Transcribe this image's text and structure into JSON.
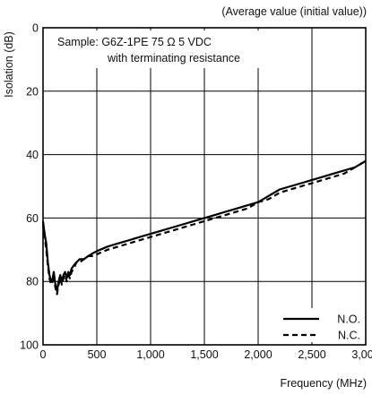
{
  "chart_data": {
    "type": "line",
    "title": "",
    "note": "(Average value (initial value))",
    "annotation": {
      "line1": "Sample: G6Z-1PE  75 Ω  5 VDC",
      "line2": "with terminating resistance"
    },
    "xlabel": "Frequency (MHz)",
    "ylabel": "Isolation (dB)",
    "xlim": [
      0,
      3000
    ],
    "ylim": [
      0,
      100
    ],
    "y_inverted": true,
    "grid": true,
    "legend_position": "bottom-right",
    "x_ticks": [
      {
        "value": 0,
        "label": "0"
      },
      {
        "value": 500,
        "label": "500"
      },
      {
        "value": 1000,
        "label": "1,000"
      },
      {
        "value": 1500,
        "label": "1,500"
      },
      {
        "value": 2000,
        "label": "2,000"
      },
      {
        "value": 2500,
        "label": "2,500"
      },
      {
        "value": 3000,
        "label": "3,000"
      }
    ],
    "y_ticks": [
      {
        "value": 0,
        "label": "0"
      },
      {
        "value": 20,
        "label": "20"
      },
      {
        "value": 40,
        "label": "40"
      },
      {
        "value": 60,
        "label": "60"
      },
      {
        "value": 80,
        "label": "80"
      },
      {
        "value": 100,
        "label": "100"
      }
    ],
    "series": [
      {
        "name": "N.O.",
        "style": "solid",
        "color": "#000000",
        "points": [
          [
            0,
            61
          ],
          [
            15,
            65
          ],
          [
            30,
            68
          ],
          [
            45,
            74
          ],
          [
            60,
            78
          ],
          [
            75,
            80
          ],
          [
            90,
            79
          ],
          [
            100,
            77
          ],
          [
            115,
            81
          ],
          [
            130,
            83
          ],
          [
            145,
            80
          ],
          [
            160,
            78
          ],
          [
            175,
            80
          ],
          [
            190,
            78
          ],
          [
            205,
            77
          ],
          [
            220,
            79
          ],
          [
            235,
            77
          ],
          [
            250,
            78
          ],
          [
            265,
            76
          ],
          [
            285,
            75
          ],
          [
            310,
            74
          ],
          [
            340,
            73
          ],
          [
            380,
            73
          ],
          [
            420,
            72
          ],
          [
            470,
            71
          ],
          [
            530,
            70
          ],
          [
            600,
            69
          ],
          [
            700,
            68
          ],
          [
            800,
            67
          ],
          [
            900,
            66
          ],
          [
            1000,
            65
          ],
          [
            1100,
            64
          ],
          [
            1200,
            63
          ],
          [
            1300,
            62
          ],
          [
            1400,
            61
          ],
          [
            1500,
            60
          ],
          [
            1600,
            59
          ],
          [
            1700,
            58
          ],
          [
            1800,
            57
          ],
          [
            1900,
            56
          ],
          [
            2000,
            55
          ],
          [
            2100,
            53
          ],
          [
            2200,
            51
          ],
          [
            2300,
            50
          ],
          [
            2400,
            49
          ],
          [
            2500,
            48
          ],
          [
            2600,
            47
          ],
          [
            2700,
            46
          ],
          [
            2800,
            45
          ],
          [
            2900,
            44
          ],
          [
            3000,
            42
          ]
        ]
      },
      {
        "name": "N.C.",
        "style": "dashed",
        "color": "#000000",
        "points": [
          [
            0,
            62
          ],
          [
            15,
            66
          ],
          [
            30,
            70
          ],
          [
            45,
            75
          ],
          [
            60,
            79
          ],
          [
            75,
            81
          ],
          [
            90,
            80
          ],
          [
            100,
            78
          ],
          [
            115,
            82
          ],
          [
            130,
            84
          ],
          [
            145,
            81
          ],
          [
            160,
            79
          ],
          [
            175,
            81
          ],
          [
            190,
            79
          ],
          [
            205,
            78
          ],
          [
            220,
            80
          ],
          [
            235,
            78
          ],
          [
            250,
            79
          ],
          [
            265,
            77
          ],
          [
            285,
            76
          ],
          [
            310,
            74
          ],
          [
            340,
            74
          ],
          [
            380,
            73
          ],
          [
            420,
            72
          ],
          [
            470,
            72
          ],
          [
            530,
            71
          ],
          [
            600,
            70
          ],
          [
            700,
            69
          ],
          [
            800,
            68
          ],
          [
            900,
            67
          ],
          [
            1000,
            66
          ],
          [
            1100,
            65
          ],
          [
            1200,
            64
          ],
          [
            1300,
            63
          ],
          [
            1400,
            62
          ],
          [
            1500,
            61
          ],
          [
            1600,
            60
          ],
          [
            1700,
            59
          ],
          [
            1800,
            58
          ],
          [
            1900,
            57
          ],
          [
            2000,
            55
          ],
          [
            2100,
            54
          ],
          [
            2200,
            52
          ],
          [
            2300,
            51
          ],
          [
            2400,
            50
          ],
          [
            2500,
            49
          ],
          [
            2600,
            48
          ],
          [
            2700,
            47
          ],
          [
            2800,
            46
          ],
          [
            2900,
            44
          ],
          [
            3000,
            42
          ]
        ]
      }
    ]
  }
}
